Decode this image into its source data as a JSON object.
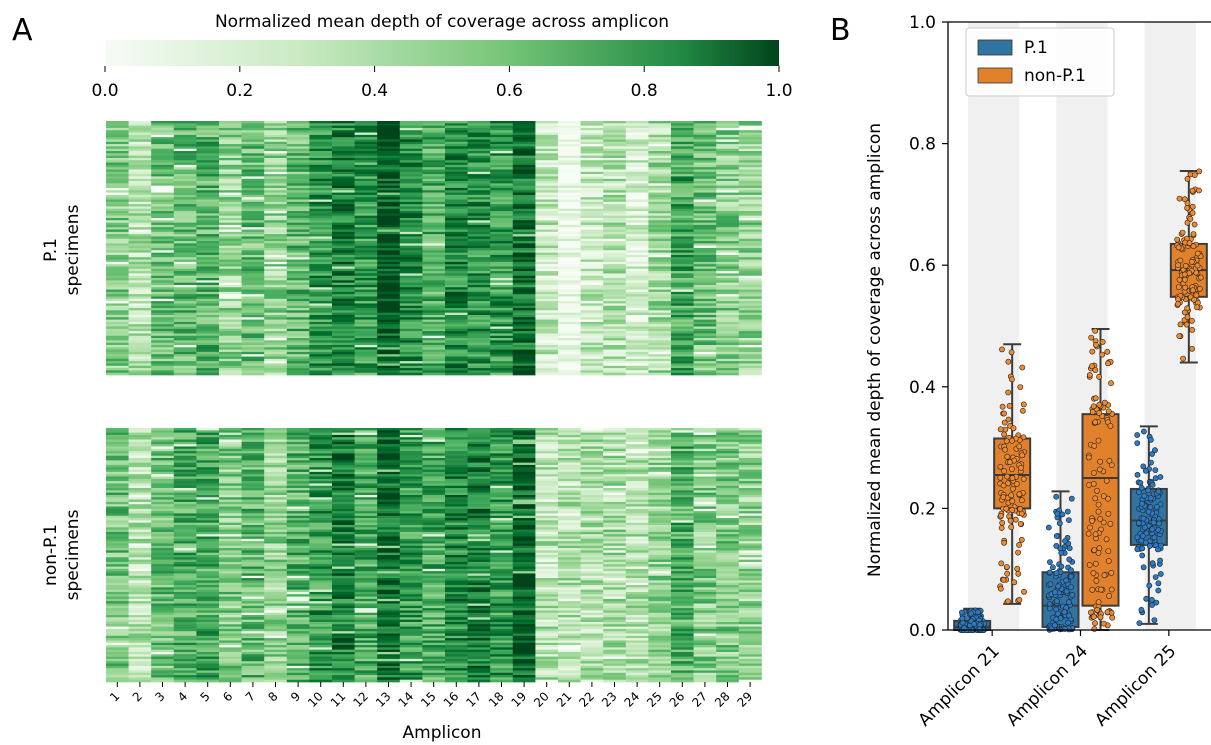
{
  "panels": {
    "a_label": "A",
    "b_label": "B"
  },
  "colors": {
    "cmap_low": "#f7fcf5",
    "cmap_mid1": "#c7e9c0",
    "cmap_mid2": "#74c476",
    "cmap_mid3": "#238b45",
    "cmap_high": "#00441b",
    "p1_box": "#3274a1",
    "p1_point": "#2a7bc4",
    "nonp1_box": "#e1812c",
    "nonp1_point": "#f08a2c",
    "band": "#f0f0f0",
    "axis": "#000000",
    "whisker": "#3c3c3c"
  },
  "chart_data": [
    {
      "type": "heatmap",
      "colorbar": {
        "label": "Normalized mean depth of coverage across amplicon",
        "ticks": [
          "0.0",
          "0.2",
          "0.4",
          "0.6",
          "0.8",
          "1.0"
        ],
        "range": [
          0,
          1
        ],
        "colormap": "Greens"
      },
      "xlabel": "Amplicon",
      "x_ticks": [
        "1",
        "2",
        "3",
        "4",
        "5",
        "6",
        "7",
        "8",
        "9",
        "10",
        "11",
        "12",
        "13",
        "14",
        "15",
        "16",
        "17",
        "18",
        "19",
        "20",
        "21",
        "22",
        "23",
        "24",
        "25",
        "26",
        "27",
        "28",
        "29"
      ],
      "groups": [
        {
          "name": "P.1\nspecimens",
          "label_lines": [
            "P.1",
            "specimens"
          ],
          "mean_by_amplicon": [
            0.45,
            0.3,
            0.5,
            0.55,
            0.58,
            0.4,
            0.52,
            0.4,
            0.55,
            0.72,
            0.78,
            0.68,
            0.95,
            0.75,
            0.6,
            0.75,
            0.72,
            0.7,
            0.85,
            0.25,
            0.02,
            0.25,
            0.3,
            0.18,
            0.35,
            0.65,
            0.5,
            0.45,
            0.4
          ]
        },
        {
          "name": "non-P.1\nspecimens",
          "label_lines": [
            "non-P.1",
            "specimens"
          ],
          "mean_by_amplicon": [
            0.5,
            0.3,
            0.52,
            0.6,
            0.62,
            0.45,
            0.55,
            0.4,
            0.58,
            0.7,
            0.8,
            0.62,
            0.88,
            0.68,
            0.62,
            0.75,
            0.8,
            0.7,
            0.9,
            0.3,
            0.3,
            0.32,
            0.35,
            0.3,
            0.4,
            0.6,
            0.45,
            0.45,
            0.4
          ]
        }
      ]
    },
    {
      "type": "box",
      "ylabel": "Normalized mean depth of coverage across amplicon",
      "ylim": [
        0,
        1.0
      ],
      "y_ticks": [
        0.0,
        0.2,
        0.4,
        0.6,
        0.8,
        1.0
      ],
      "y_tick_labels": [
        "0.0",
        "0.2",
        "0.4",
        "0.6",
        "0.8",
        "1.0"
      ],
      "categories": [
        "Amplicon 21",
        "Amplicon 24",
        "Amplicon 25"
      ],
      "legend_position": "top-left",
      "grid": false,
      "series": [
        {
          "name": "P.1",
          "boxes": [
            {
              "min": 0.0,
              "q1": 0.0,
              "median": 0.005,
              "q3": 0.015,
              "max": 0.035
            },
            {
              "min": 0.0,
              "q1": 0.005,
              "median": 0.04,
              "q3": 0.095,
              "max": 0.228
            },
            {
              "min": 0.01,
              "q1": 0.14,
              "median": 0.18,
              "q3": 0.232,
              "max": 0.335
            }
          ]
        },
        {
          "name": "non-P.1",
          "boxes": [
            {
              "min": 0.043,
              "q1": 0.2,
              "median": 0.255,
              "q3": 0.315,
              "max": 0.47
            },
            {
              "min": 0.0,
              "q1": 0.04,
              "median": 0.25,
              "q3": 0.355,
              "max": 0.495
            },
            {
              "min": 0.44,
              "q1": 0.548,
              "median": 0.592,
              "q3": 0.635,
              "max": 0.755
            }
          ]
        }
      ]
    }
  ]
}
